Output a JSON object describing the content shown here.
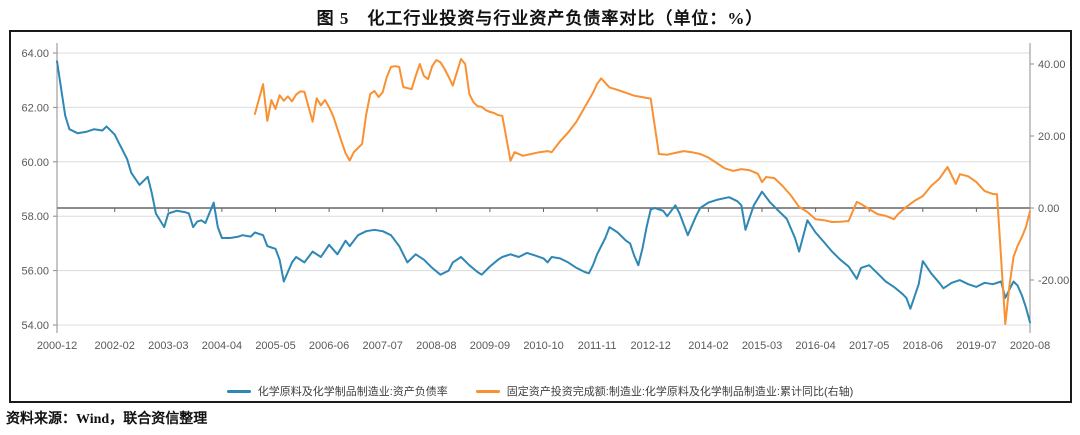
{
  "title": "图 5　化工行业投资与行业资产负债率对比（单位：%）",
  "source_note": "资料来源：Wind，联合资信整理",
  "colors": {
    "blue_series": "#2E87B5",
    "orange_series": "#F99132",
    "gridline": "#dcdcdc",
    "zero_line": "#666666",
    "axis_line": "#8c8c8c",
    "tick_label": "#595959",
    "frame_border": "#1a1a1a"
  },
  "chart_data": {
    "type": "line",
    "title": "图 5　化工行业投资与行业资产负债率对比（单位：%）",
    "grid": true,
    "legend_position": "bottom",
    "x_domain": [
      0,
      236
    ],
    "x_axis": {
      "tick_labels": [
        "2000-12",
        "2002-02",
        "2003-03",
        "2004-04",
        "2005-05",
        "2006-06",
        "2007-07",
        "2008-08",
        "2009-09",
        "2010-10",
        "2011-11",
        "2012-12",
        "2014-02",
        "2015-03",
        "2016-04",
        "2017-05",
        "2018-06",
        "2019-07",
        "2020-08"
      ],
      "tick_indices": [
        0,
        14,
        27,
        40,
        53,
        66,
        79,
        92,
        105,
        118,
        131,
        144,
        158,
        171,
        184,
        197,
        210,
        223,
        236
      ]
    },
    "left_axis": {
      "min": 54,
      "max": 64,
      "tick_values": [
        64,
        62,
        60,
        58,
        56,
        54
      ],
      "tick_labels": [
        "64.00",
        "62.00",
        "60.00",
        "58.00",
        "56.00",
        "54.00"
      ]
    },
    "right_axis": {
      "tick_values": [
        40,
        20,
        0,
        -20
      ],
      "tick_labels": [
        "40.00",
        "20.00",
        "0.00",
        "-20.00"
      ]
    },
    "series": [
      {
        "name": "化学原料及化学制品制造业:资产负债率",
        "axis": "left",
        "color": "#2E87B5",
        "points": [
          [
            0,
            63.7
          ],
          [
            2,
            61.7
          ],
          [
            3,
            61.2
          ],
          [
            5,
            61.05
          ],
          [
            7,
            61.1
          ],
          [
            9,
            61.2
          ],
          [
            11,
            61.15
          ],
          [
            12,
            61.3
          ],
          [
            14,
            61.0
          ],
          [
            15,
            60.7
          ],
          [
            16,
            60.4
          ],
          [
            17,
            60.1
          ],
          [
            18,
            59.6
          ],
          [
            20,
            59.15
          ],
          [
            22,
            59.45
          ],
          [
            23,
            58.85
          ],
          [
            24,
            58.1
          ],
          [
            26,
            57.6
          ],
          [
            27,
            58.1
          ],
          [
            29,
            58.2
          ],
          [
            31,
            58.15
          ],
          [
            32,
            58.1
          ],
          [
            33,
            57.6
          ],
          [
            34,
            57.8
          ],
          [
            35,
            57.85
          ],
          [
            36,
            57.75
          ],
          [
            38,
            58.5
          ],
          [
            39,
            57.6
          ],
          [
            40,
            57.2
          ],
          [
            42,
            57.2
          ],
          [
            44,
            57.25
          ],
          [
            45,
            57.3
          ],
          [
            47,
            57.25
          ],
          [
            48,
            57.4
          ],
          [
            50,
            57.3
          ],
          [
            51,
            56.9
          ],
          [
            52,
            56.85
          ],
          [
            53,
            56.8
          ],
          [
            54,
            56.4
          ],
          [
            55,
            55.6
          ],
          [
            57,
            56.3
          ],
          [
            58,
            56.5
          ],
          [
            60,
            56.3
          ],
          [
            62,
            56.7
          ],
          [
            64,
            56.5
          ],
          [
            66,
            56.95
          ],
          [
            68,
            56.6
          ],
          [
            70,
            57.1
          ],
          [
            71,
            56.9
          ],
          [
            73,
            57.3
          ],
          [
            75,
            57.45
          ],
          [
            77,
            57.5
          ],
          [
            79,
            57.45
          ],
          [
            81,
            57.3
          ],
          [
            83,
            56.9
          ],
          [
            84,
            56.6
          ],
          [
            85,
            56.3
          ],
          [
            87,
            56.6
          ],
          [
            89,
            56.4
          ],
          [
            91,
            56.1
          ],
          [
            93,
            55.85
          ],
          [
            95,
            56.0
          ],
          [
            96,
            56.3
          ],
          [
            98,
            56.5
          ],
          [
            100,
            56.2
          ],
          [
            102,
            55.95
          ],
          [
            103,
            55.85
          ],
          [
            105,
            56.15
          ],
          [
            107,
            56.4
          ],
          [
            108,
            56.5
          ],
          [
            110,
            56.6
          ],
          [
            112,
            56.5
          ],
          [
            114,
            56.65
          ],
          [
            116,
            56.55
          ],
          [
            118,
            56.45
          ],
          [
            119,
            56.3
          ],
          [
            120,
            56.5
          ],
          [
            122,
            56.45
          ],
          [
            124,
            56.3
          ],
          [
            126,
            56.1
          ],
          [
            128,
            55.95
          ],
          [
            129,
            55.9
          ],
          [
            130,
            56.2
          ],
          [
            131,
            56.6
          ],
          [
            133,
            57.2
          ],
          [
            134,
            57.6
          ],
          [
            136,
            57.4
          ],
          [
            138,
            57.1
          ],
          [
            139,
            57.0
          ],
          [
            140,
            56.55
          ],
          [
            141,
            56.2
          ],
          [
            142,
            56.8
          ],
          [
            143,
            57.6
          ],
          [
            144,
            58.25
          ],
          [
            145,
            58.3
          ],
          [
            147,
            58.2
          ],
          [
            148,
            58.0
          ],
          [
            150,
            58.4
          ],
          [
            151,
            58.1
          ],
          [
            152,
            57.7
          ],
          [
            153,
            57.3
          ],
          [
            155,
            58.0
          ],
          [
            156,
            58.3
          ],
          [
            158,
            58.5
          ],
          [
            160,
            58.6
          ],
          [
            163,
            58.7
          ],
          [
            165,
            58.55
          ],
          [
            166,
            58.4
          ],
          [
            167,
            57.5
          ],
          [
            169,
            58.4
          ],
          [
            171,
            58.9
          ],
          [
            173,
            58.5
          ],
          [
            175,
            58.2
          ],
          [
            177,
            57.9
          ],
          [
            179,
            57.2
          ],
          [
            180,
            56.7
          ],
          [
            182,
            57.85
          ],
          [
            184,
            57.4
          ],
          [
            186,
            57.05
          ],
          [
            188,
            56.7
          ],
          [
            190,
            56.4
          ],
          [
            192,
            56.15
          ],
          [
            194,
            55.7
          ],
          [
            195,
            56.1
          ],
          [
            197,
            56.2
          ],
          [
            199,
            55.9
          ],
          [
            201,
            55.6
          ],
          [
            203,
            55.4
          ],
          [
            205,
            55.15
          ],
          [
            206,
            55.0
          ],
          [
            207,
            54.6
          ],
          [
            209,
            55.5
          ],
          [
            210,
            56.35
          ],
          [
            212,
            55.9
          ],
          [
            214,
            55.55
          ],
          [
            215,
            55.35
          ],
          [
            217,
            55.55
          ],
          [
            219,
            55.65
          ],
          [
            221,
            55.5
          ],
          [
            223,
            55.4
          ],
          [
            225,
            55.55
          ],
          [
            227,
            55.5
          ],
          [
            229,
            55.6
          ],
          [
            230,
            55.0
          ],
          [
            231,
            55.3
          ],
          [
            232,
            55.6
          ],
          [
            233,
            55.45
          ],
          [
            234,
            55.1
          ],
          [
            235,
            54.65
          ],
          [
            236,
            54.1
          ]
        ]
      },
      {
        "name": "固定资产投资完成额:制造业:化学原料及化学制品制造业:累计同比(右轴)",
        "axis": "right",
        "color": "#F99132",
        "points": [
          [
            48,
            26.1
          ],
          [
            50,
            34.4
          ],
          [
            51,
            24.2
          ],
          [
            52,
            30.0
          ],
          [
            53,
            27.5
          ],
          [
            54,
            31.3
          ],
          [
            55,
            29.8
          ],
          [
            56,
            31.0
          ],
          [
            57,
            29.6
          ],
          [
            58,
            31.5
          ],
          [
            59,
            32.4
          ],
          [
            60,
            32.3
          ],
          [
            62,
            24.0
          ],
          [
            63,
            30.5
          ],
          [
            64,
            28.5
          ],
          [
            65,
            30.0
          ],
          [
            66,
            28.0
          ],
          [
            67,
            25.5
          ],
          [
            68,
            22.0
          ],
          [
            69,
            18.5
          ],
          [
            70,
            15.2
          ],
          [
            71,
            13.2
          ],
          [
            72,
            15.5
          ],
          [
            74,
            17.8
          ],
          [
            75,
            26.0
          ],
          [
            76,
            31.7
          ],
          [
            77,
            32.5
          ],
          [
            78,
            30.8
          ],
          [
            79,
            32.2
          ],
          [
            80,
            36.4
          ],
          [
            81,
            39.2
          ],
          [
            82,
            39.4
          ],
          [
            83,
            39.2
          ],
          [
            84,
            33.6
          ],
          [
            86,
            33.0
          ],
          [
            87,
            36.7
          ],
          [
            88,
            40.0
          ],
          [
            89,
            36.7
          ],
          [
            90,
            35.8
          ],
          [
            91,
            39.4
          ],
          [
            92,
            41.1
          ],
          [
            93,
            40.5
          ],
          [
            94,
            38.6
          ],
          [
            95,
            36.4
          ],
          [
            96,
            34.0
          ],
          [
            98,
            41.4
          ],
          [
            99,
            40.0
          ],
          [
            100,
            31.7
          ],
          [
            101,
            29.4
          ],
          [
            102,
            28.3
          ],
          [
            103,
            28.1
          ],
          [
            104,
            27.2
          ],
          [
            105,
            26.7
          ],
          [
            106,
            26.4
          ],
          [
            107,
            25.8
          ],
          [
            108,
            25.6
          ],
          [
            110,
            13.1
          ],
          [
            111,
            15.5
          ],
          [
            113,
            14.5
          ],
          [
            115,
            15.0
          ],
          [
            117,
            15.5
          ],
          [
            119,
            15.8
          ],
          [
            120,
            15.5
          ],
          [
            122,
            18.5
          ],
          [
            124,
            21.0
          ],
          [
            126,
            24.0
          ],
          [
            128,
            28.0
          ],
          [
            130,
            32.0
          ],
          [
            131,
            34.5
          ],
          [
            132,
            36.0
          ],
          [
            134,
            33.5
          ],
          [
            136,
            32.8
          ],
          [
            138,
            32.0
          ],
          [
            140,
            31.2
          ],
          [
            142,
            30.8
          ],
          [
            144,
            30.4
          ],
          [
            146,
            15.0
          ],
          [
            148,
            14.8
          ],
          [
            150,
            15.3
          ],
          [
            152,
            15.8
          ],
          [
            154,
            15.5
          ],
          [
            156,
            15.0
          ],
          [
            158,
            14.0
          ],
          [
            160,
            12.5
          ],
          [
            162,
            11.0
          ],
          [
            164,
            10.3
          ],
          [
            166,
            10.8
          ],
          [
            168,
            10.5
          ],
          [
            170,
            9.5
          ],
          [
            171,
            7.2
          ],
          [
            172,
            8.6
          ],
          [
            174,
            8.3
          ],
          [
            176,
            6.1
          ],
          [
            178,
            3.5
          ],
          [
            180,
            0.3
          ],
          [
            182,
            -1.1
          ],
          [
            184,
            -3.1
          ],
          [
            186,
            -3.4
          ],
          [
            188,
            -3.9
          ],
          [
            190,
            -3.8
          ],
          [
            192,
            -3.6
          ],
          [
            194,
            1.7
          ],
          [
            195,
            1.1
          ],
          [
            197,
            -0.3
          ],
          [
            199,
            -1.7
          ],
          [
            201,
            -2.2
          ],
          [
            203,
            -3.1
          ],
          [
            204,
            -1.7
          ],
          [
            206,
            0.3
          ],
          [
            208,
            2.0
          ],
          [
            210,
            3.3
          ],
          [
            212,
            6.1
          ],
          [
            214,
            8.1
          ],
          [
            216,
            11.4
          ],
          [
            218,
            6.7
          ],
          [
            219,
            9.4
          ],
          [
            221,
            8.8
          ],
          [
            223,
            7.2
          ],
          [
            225,
            4.7
          ],
          [
            227,
            3.9
          ],
          [
            228,
            3.8
          ],
          [
            230,
            -32.2
          ],
          [
            231,
            -21.7
          ],
          [
            232,
            -13.6
          ],
          [
            233,
            -10.5
          ],
          [
            234,
            -8.1
          ],
          [
            235,
            -5.3
          ],
          [
            236,
            -0.9
          ]
        ]
      }
    ]
  }
}
